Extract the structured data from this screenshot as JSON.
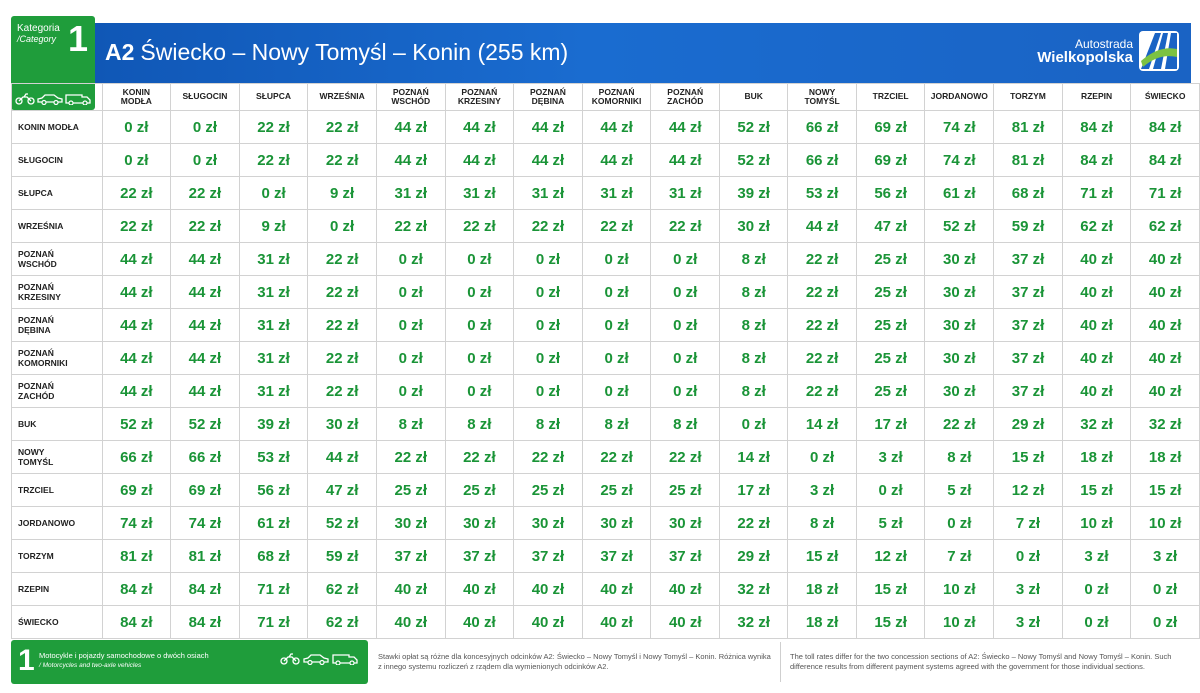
{
  "category": {
    "label": "Kategoria",
    "label_en": "/Category",
    "number": "1"
  },
  "header": {
    "road": "A2",
    "route": "Świecko – Nowy Tomyśl – Konin (255 km)",
    "logo_line1": "Autostrada",
    "logo_line2": "Wielkopolska"
  },
  "columns": [
    "KONIN\nMODŁA",
    "SŁUGOCIN",
    "SŁUPCA",
    "WRZEŚNIA",
    "POZNAŃ\nWSCHÓD",
    "POZNAŃ\nKRZESINY",
    "POZNAŃ\nDĘBINA",
    "POZNAŃ\nKOMORNIKI",
    "POZNAŃ\nZACHÓD",
    "BUK",
    "NOWY\nTOMYŚL",
    "TRZCIEL",
    "JORDANOWO",
    "TORZYM",
    "RZEPIN",
    "ŚWIECKO"
  ],
  "rows": [
    {
      "name": "KONIN MODŁA",
      "tolls": [
        "0 zł",
        "0 zł",
        "22 zł",
        "22 zł",
        "44 zł",
        "44 zł",
        "44 zł",
        "44 zł",
        "44 zł",
        "52 zł",
        "66 zł",
        "69 zł",
        "74 zł",
        "81 zł",
        "84 zł",
        "84 zł"
      ]
    },
    {
      "name": "SŁUGOCIN",
      "tolls": [
        "0 zł",
        "0 zł",
        "22 zł",
        "22 zł",
        "44 zł",
        "44 zł",
        "44 zł",
        "44 zł",
        "44 zł",
        "52 zł",
        "66 zł",
        "69 zł",
        "74 zł",
        "81 zł",
        "84 zł",
        "84 zł"
      ]
    },
    {
      "name": "SŁUPCA",
      "tolls": [
        "22 zł",
        "22 zł",
        "0 zł",
        "9 zł",
        "31 zł",
        "31 zł",
        "31 zł",
        "31 zł",
        "31 zł",
        "39 zł",
        "53 zł",
        "56 zł",
        "61 zł",
        "68 zł",
        "71 zł",
        "71 zł"
      ]
    },
    {
      "name": "WRZEŚNIA",
      "tolls": [
        "22 zł",
        "22 zł",
        "9 zł",
        "0 zł",
        "22 zł",
        "22 zł",
        "22 zł",
        "22 zł",
        "22 zł",
        "30 zł",
        "44 zł",
        "47 zł",
        "52 zł",
        "59 zł",
        "62 zł",
        "62 zł"
      ]
    },
    {
      "name": "POZNAŃ\nWSCHÓD",
      "tolls": [
        "44 zł",
        "44 zł",
        "31 zł",
        "22 zł",
        "0 zł",
        "0 zł",
        "0 zł",
        "0 zł",
        "0 zł",
        "8 zł",
        "22 zł",
        "25 zł",
        "30 zł",
        "37 zł",
        "40 zł",
        "40 zł"
      ]
    },
    {
      "name": "POZNAŃ\nKRZESINY",
      "tolls": [
        "44 zł",
        "44 zł",
        "31 zł",
        "22 zł",
        "0 zł",
        "0 zł",
        "0 zł",
        "0 zł",
        "0 zł",
        "8 zł",
        "22 zł",
        "25 zł",
        "30 zł",
        "37 zł",
        "40 zł",
        "40 zł"
      ]
    },
    {
      "name": "POZNAŃ\nDĘBINA",
      "tolls": [
        "44 zł",
        "44 zł",
        "31 zł",
        "22 zł",
        "0 zł",
        "0 zł",
        "0 zł",
        "0 zł",
        "0 zł",
        "8 zł",
        "22 zł",
        "25 zł",
        "30 zł",
        "37 zł",
        "40 zł",
        "40 zł"
      ]
    },
    {
      "name": "POZNAŃ\nKOMORNIKI",
      "tolls": [
        "44 zł",
        "44 zł",
        "31 zł",
        "22 zł",
        "0 zł",
        "0 zł",
        "0 zł",
        "0 zł",
        "0 zł",
        "8 zł",
        "22 zł",
        "25 zł",
        "30 zł",
        "37 zł",
        "40 zł",
        "40 zł"
      ]
    },
    {
      "name": "POZNAŃ\nZACHÓD",
      "tolls": [
        "44 zł",
        "44 zł",
        "31 zł",
        "22 zł",
        "0 zł",
        "0 zł",
        "0 zł",
        "0 zł",
        "0 zł",
        "8 zł",
        "22 zł",
        "25 zł",
        "30 zł",
        "37 zł",
        "40 zł",
        "40 zł"
      ]
    },
    {
      "name": "BUK",
      "tolls": [
        "52 zł",
        "52 zł",
        "39 zł",
        "30 zł",
        "8 zł",
        "8 zł",
        "8 zł",
        "8 zł",
        "8 zł",
        "0 zł",
        "14 zł",
        "17 zł",
        "22 zł",
        "29 zł",
        "32 zł",
        "32 zł"
      ]
    },
    {
      "name": "NOWY\nTOMYŚL",
      "tolls": [
        "66 zł",
        "66 zł",
        "53 zł",
        "44 zł",
        "22 zł",
        "22 zł",
        "22 zł",
        "22 zł",
        "22 zł",
        "14 zł",
        "0 zł",
        "3 zł",
        "8 zł",
        "15 zł",
        "18 zł",
        "18 zł"
      ]
    },
    {
      "name": "TRZCIEL",
      "tolls": [
        "69 zł",
        "69 zł",
        "56 zł",
        "47 zł",
        "25 zł",
        "25 zł",
        "25 zł",
        "25 zł",
        "25 zł",
        "17 zł",
        "3 zł",
        "0 zł",
        "5 zł",
        "12 zł",
        "15 zł",
        "15 zł"
      ]
    },
    {
      "name": "JORDANOWO",
      "tolls": [
        "74 zł",
        "74 zł",
        "61 zł",
        "52 zł",
        "30 zł",
        "30 zł",
        "30 zł",
        "30 zł",
        "30 zł",
        "22 zł",
        "8 zł",
        "5 zł",
        "0 zł",
        "7 zł",
        "10 zł",
        "10 zł"
      ]
    },
    {
      "name": "TORZYM",
      "tolls": [
        "81 zł",
        "81 zł",
        "68 zł",
        "59 zł",
        "37 zł",
        "37 zł",
        "37 zł",
        "37 zł",
        "37 zł",
        "29 zł",
        "15 zł",
        "12 zł",
        "7 zł",
        "0 zł",
        "3 zł",
        "3 zł"
      ]
    },
    {
      "name": "RZEPIN",
      "tolls": [
        "84 zł",
        "84 zł",
        "71 zł",
        "62 zł",
        "40 zł",
        "40 zł",
        "40 zł",
        "40 zł",
        "40 zł",
        "32 zł",
        "18 zł",
        "15 zł",
        "10 zł",
        "3 zł",
        "0 zł",
        "0 zł"
      ]
    },
    {
      "name": "ŚWIECKO",
      "tolls": [
        "84 zł",
        "84 zł",
        "71 zł",
        "62 zł",
        "40 zł",
        "40 zł",
        "40 zł",
        "40 zł",
        "40 zł",
        "32 zł",
        "18 zł",
        "15 zł",
        "10 zł",
        "3 zł",
        "0 zł",
        "0 zł"
      ]
    }
  ],
  "footer": {
    "number": "1",
    "label_pl": "Motocykle i pojazdy samochodowe o dwóch osiach",
    "label_en": "/ Motorcycles and two-axle vehicles",
    "note_pl": "Stawki opłat są różne dla koncesyjnych odcinków A2: Świecko – Nowy Tomyśl i Nowy Tomyśl – Konin. Różnica wynika z innego systemu rozliczeń z rządem dla wymienionych odcinków A2.",
    "note_en": "The toll rates differ for the two concession sections of A2: Świecko – Nowy Tomyśl and Nowy Tomyśl – Konin. Such difference results from different payment systems agreed with the government for those individual sections."
  },
  "icons": {
    "vehicles": [
      "motorcycle-icon",
      "car-icon",
      "van-icon"
    ],
    "logo": "motorway-logo-icon"
  },
  "colors": {
    "green": "#1f9d3b",
    "toll_text": "#1a9437",
    "header_blue": "#1a63c4"
  }
}
